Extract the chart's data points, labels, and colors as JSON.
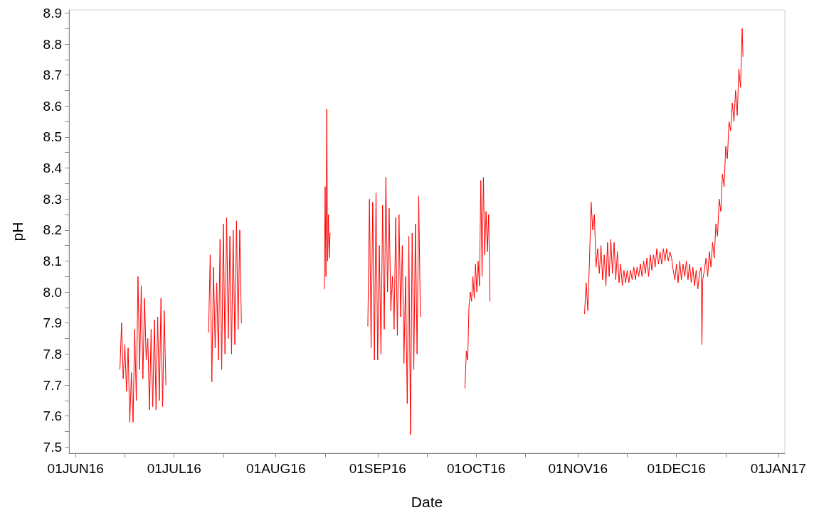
{
  "chart_data": {
    "type": "line",
    "xlabel": "Date",
    "ylabel": "pH",
    "grid": false,
    "marker": "none",
    "line_style": "solid",
    "xlim": [
      "2016-05-30",
      "2017-01-03"
    ],
    "ylim": [
      7.48,
      8.91
    ],
    "xticks": [
      {
        "value": "2016-06-01",
        "label": "01JUN16"
      },
      {
        "value": "2016-06-16",
        "label": null
      },
      {
        "value": "2016-07-01",
        "label": "01JUL16"
      },
      {
        "value": "2016-07-16",
        "label": null
      },
      {
        "value": "2016-08-01",
        "label": "01AUG16"
      },
      {
        "value": "2016-08-16",
        "label": null
      },
      {
        "value": "2016-09-01",
        "label": "01SEP16"
      },
      {
        "value": "2016-09-16",
        "label": null
      },
      {
        "value": "2016-10-01",
        "label": "01OCT16"
      },
      {
        "value": "2016-10-16",
        "label": null
      },
      {
        "value": "2016-11-01",
        "label": "01NOV16"
      },
      {
        "value": "2016-11-16",
        "label": null
      },
      {
        "value": "2016-12-01",
        "label": "01DEC16"
      },
      {
        "value": "2016-12-16",
        "label": null
      },
      {
        "value": "2017-01-01",
        "label": "01JAN17"
      }
    ],
    "yticks": [
      7.5,
      {
        "value": 7.55,
        "label": null
      },
      7.6,
      {
        "value": 7.65,
        "label": null
      },
      7.7,
      {
        "value": 7.75,
        "label": null
      },
      7.8,
      {
        "value": 7.85,
        "label": null
      },
      7.9,
      {
        "value": 7.95,
        "label": null
      },
      {
        "value": 8,
        "label": "8.0"
      },
      {
        "value": 8.05,
        "label": null
      },
      8.1,
      {
        "value": 8.15,
        "label": null
      },
      8.2,
      {
        "value": 8.25,
        "label": null
      },
      8.3,
      {
        "value": 8.35,
        "label": null
      },
      8.4,
      {
        "value": 8.45,
        "label": null
      },
      8.5,
      {
        "value": 8.55,
        "label": null
      },
      8.6,
      {
        "value": 8.65,
        "label": null
      },
      8.7,
      {
        "value": 8.75,
        "label": null
      },
      8.8,
      {
        "value": 8.85,
        "label": null
      },
      8.9
    ],
    "x": [
      "2016-06-14T12:00",
      "2016-06-15T00:00",
      "2016-06-15T12:00",
      "2016-06-16T00:00",
      "2016-06-16T12:00",
      "2016-06-17T00:00",
      "2016-06-17T12:00",
      "2016-06-18T00:00",
      "2016-06-18T12:00",
      "2016-06-19T00:00",
      "2016-06-19T12:00",
      "2016-06-20T00:00",
      "2016-06-20T12:00",
      "2016-06-21T00:00",
      "2016-06-21T12:00",
      "2016-06-22T00:00",
      "2016-06-22T12:00",
      "2016-06-23T00:00",
      "2016-06-23T12:00",
      "2016-06-24T00:00",
      "2016-06-24T12:00",
      "2016-06-25T00:00",
      "2016-06-25T12:00",
      "2016-06-26T00:00",
      "2016-06-26T12:00",
      "2016-06-27T00:00",
      "2016-06-27T12:00",
      "2016-06-28T00:00",
      "2016-06-28T12:00",
      "2016-07-05",
      "2016-07-11T12:00",
      "2016-07-12T00:00",
      "2016-07-12T12:00",
      "2016-07-13T00:00",
      "2016-07-13T12:00",
      "2016-07-14T00:00",
      "2016-07-14T12:00",
      "2016-07-15T00:00",
      "2016-07-15T12:00",
      "2016-07-16T00:00",
      "2016-07-16T12:00",
      "2016-07-17T00:00",
      "2016-07-17T12:00",
      "2016-07-18T00:00",
      "2016-07-18T12:00",
      "2016-07-19T00:00",
      "2016-07-19T12:00",
      "2016-07-20T00:00",
      "2016-07-20T12:00",
      "2016-07-21T00:00",
      "2016-07-21T12:00",
      "2016-08-01",
      "2016-08-15T18:00",
      "2016-08-16T00:00",
      "2016-08-16T06:00",
      "2016-08-16T12:00",
      "2016-08-16T18:00",
      "2016-08-17T00:00",
      "2016-08-17T06:00",
      "2016-08-17T12:00",
      "2016-08-23",
      "2016-08-29T00:00",
      "2016-08-29T12:00",
      "2016-08-30T00:00",
      "2016-08-30T12:00",
      "2016-08-31T00:00",
      "2016-08-31T12:00",
      "2016-09-01T00:00",
      "2016-09-01T12:00",
      "2016-09-02T00:00",
      "2016-09-02T12:00",
      "2016-09-03T00:00",
      "2016-09-03T12:00",
      "2016-09-04T00:00",
      "2016-09-04T12:00",
      "2016-09-05T00:00",
      "2016-09-05T12:00",
      "2016-09-06T00:00",
      "2016-09-06T12:00",
      "2016-09-07T00:00",
      "2016-09-07T12:00",
      "2016-09-08T00:00",
      "2016-09-08T12:00",
      "2016-09-09T00:00",
      "2016-09-09T12:00",
      "2016-09-10T00:00",
      "2016-09-10T12:00",
      "2016-09-11T00:00",
      "2016-09-11T12:00",
      "2016-09-12T00:00",
      "2016-09-12T12:00",
      "2016-09-13T00:00",
      "2016-09-13T12:00",
      "2016-09-14T00:00",
      "2016-09-21",
      "2016-09-27T14:00",
      "2016-09-28T00:00",
      "2016-09-28T10:00",
      "2016-09-28T19:00",
      "2016-09-29T05:00",
      "2016-09-29T14:00",
      "2016-09-30T00:00",
      "2016-09-30T10:00",
      "2016-09-30T19:00",
      "2016-10-01T05:00",
      "2016-10-01T14:00",
      "2016-10-02T00:00",
      "2016-10-02T10:00",
      "2016-10-02T19:00",
      "2016-10-03T05:00",
      "2016-10-03T14:00",
      "2016-10-04T00:00",
      "2016-10-04T10:00",
      "2016-10-04T19:00",
      "2016-10-05T05:00",
      "2016-10-20",
      "2016-11-03T00:00",
      "2016-11-03T12:00",
      "2016-11-04T00:00",
      "2016-11-04T12:00",
      "2016-11-05T00:00",
      "2016-11-05T12:00",
      "2016-11-06T00:00",
      "2016-11-06T12:00",
      "2016-11-07T00:00",
      "2016-11-07T12:00",
      "2016-11-08T00:00",
      "2016-11-08T12:00",
      "2016-11-09T00:00",
      "2016-11-09T12:00",
      "2016-11-10T00:00",
      "2016-11-10T12:00",
      "2016-11-11T00:00",
      "2016-11-11T12:00",
      "2016-11-12T00:00",
      "2016-11-12T12:00",
      "2016-11-13T00:00",
      "2016-11-13T12:00",
      "2016-11-14T00:00",
      "2016-11-14T12:00",
      "2016-11-15T00:00",
      "2016-11-15T12:00",
      "2016-11-16T00:00",
      "2016-11-16T12:00",
      "2016-11-17T00:00",
      "2016-11-17T12:00",
      "2016-11-18T00:00",
      "2016-11-18T12:00",
      "2016-11-19T00:00",
      "2016-11-19T12:00",
      "2016-11-20T00:00",
      "2016-11-20T12:00",
      "2016-11-21T00:00",
      "2016-11-21T12:00",
      "2016-11-22T00:00",
      "2016-11-22T12:00",
      "2016-11-23T00:00",
      "2016-11-23T12:00",
      "2016-11-24T00:00",
      "2016-11-24T12:00",
      "2016-11-25T00:00",
      "2016-11-25T12:00",
      "2016-11-26T00:00",
      "2016-11-26T12:00",
      "2016-11-27T00:00",
      "2016-11-27T12:00",
      "2016-11-28T00:00",
      "2016-11-28T12:00",
      "2016-11-29T00:00",
      "2016-11-29T12:00",
      "2016-11-30T00:00",
      "2016-11-30T12:00",
      "2016-12-01T00:00",
      "2016-12-01T12:00",
      "2016-12-02T00:00",
      "2016-12-02T12:00",
      "2016-12-03T00:00",
      "2016-12-03T12:00",
      "2016-12-04T00:00",
      "2016-12-04T12:00",
      "2016-12-05T00:00",
      "2016-12-05T12:00",
      "2016-12-06T00:00",
      "2016-12-06T12:00",
      "2016-12-07T00:00",
      "2016-12-07T12:00",
      "2016-12-08T00:00",
      "2016-12-08T12:00",
      "2016-12-08T18:00",
      "2016-12-09T00:00",
      "2016-12-09T12:00",
      "2016-12-10T00:00",
      "2016-12-10T12:00",
      "2016-12-11T00:00",
      "2016-12-11T12:00",
      "2016-12-12T00:00",
      "2016-12-12T12:00",
      "2016-12-13T00:00",
      "2016-12-13T12:00",
      "2016-12-14T00:00",
      "2016-12-14T12:00",
      "2016-12-15T00:00",
      "2016-12-15T12:00",
      "2016-12-16T00:00",
      "2016-12-16T12:00",
      "2016-12-17T00:00",
      "2016-12-17T12:00",
      "2016-12-18T00:00",
      "2016-12-18T12:00",
      "2016-12-19T00:00",
      "2016-12-19T12:00",
      "2016-12-20T00:00",
      "2016-12-20T12:00",
      "2016-12-21T00:00",
      "2016-12-21T06:00"
    ],
    "series": [
      {
        "color": "#ff0000",
        "values": [
          7.75,
          7.9,
          7.72,
          7.83,
          7.68,
          7.82,
          7.58,
          7.74,
          7.58,
          7.88,
          7.65,
          8.05,
          7.75,
          8.02,
          7.72,
          7.98,
          7.78,
          7.85,
          7.62,
          7.88,
          7.63,
          7.91,
          7.62,
          7.92,
          7.65,
          7.98,
          7.63,
          7.94,
          7.7,
          null,
          7.87,
          8.12,
          7.71,
          8.08,
          7.82,
          8.03,
          7.78,
          8.17,
          7.75,
          8.22,
          7.8,
          8.24,
          7.85,
          8.18,
          7.8,
          8.2,
          7.83,
          8.23,
          7.88,
          8.2,
          7.9,
          null,
          8.01,
          8.34,
          8.05,
          8.59,
          8.1,
          8.25,
          8.11,
          8.19,
          null,
          7.89,
          8.3,
          7.82,
          8.29,
          7.78,
          8.32,
          7.78,
          8.15,
          7.8,
          8.28,
          7.88,
          8.37,
          8.0,
          8.27,
          7.94,
          8.05,
          7.88,
          8.24,
          7.86,
          8.25,
          7.92,
          8.15,
          7.77,
          8.05,
          7.64,
          8.18,
          7.54,
          8.19,
          7.75,
          8.22,
          7.8,
          8.31,
          7.92,
          null,
          7.69,
          7.81,
          7.78,
          7.95,
          8.0,
          7.97,
          8.05,
          7.98,
          8.09,
          8.0,
          8.1,
          8.02,
          8.36,
          8.05,
          8.37,
          8.12,
          8.26,
          8.13,
          8.25,
          7.97,
          null,
          7.93,
          8.03,
          7.94,
          8.1,
          8.29,
          8.2,
          8.25,
          8.08,
          8.14,
          8.06,
          8.15,
          8.04,
          8.12,
          8.02,
          8.16,
          8.05,
          8.17,
          8.06,
          8.16,
          8.04,
          8.13,
          8.03,
          8.09,
          8.02,
          8.07,
          8.03,
          8.07,
          8.03,
          8.07,
          8.04,
          8.08,
          8.04,
          8.08,
          8.05,
          8.09,
          8.05,
          8.1,
          8.06,
          8.11,
          8.05,
          8.12,
          8.07,
          8.12,
          8.08,
          8.14,
          8.09,
          8.13,
          8.09,
          8.14,
          8.1,
          8.14,
          8.1,
          8.13,
          8.11,
          8.07,
          8.04,
          8.09,
          8.03,
          8.1,
          8.04,
          8.09,
          8.05,
          8.1,
          8.04,
          8.09,
          8.03,
          8.08,
          8.02,
          8.07,
          8.01,
          8.06,
          8.08,
          7.83,
          8.04,
          8.07,
          8.11,
          8.05,
          8.13,
          8.08,
          8.16,
          8.11,
          8.22,
          8.18,
          8.3,
          8.26,
          8.38,
          8.34,
          8.47,
          8.43,
          8.55,
          8.52,
          8.61,
          8.55,
          8.65,
          8.57,
          8.72,
          8.66,
          8.85,
          8.76
        ]
      }
    ]
  }
}
